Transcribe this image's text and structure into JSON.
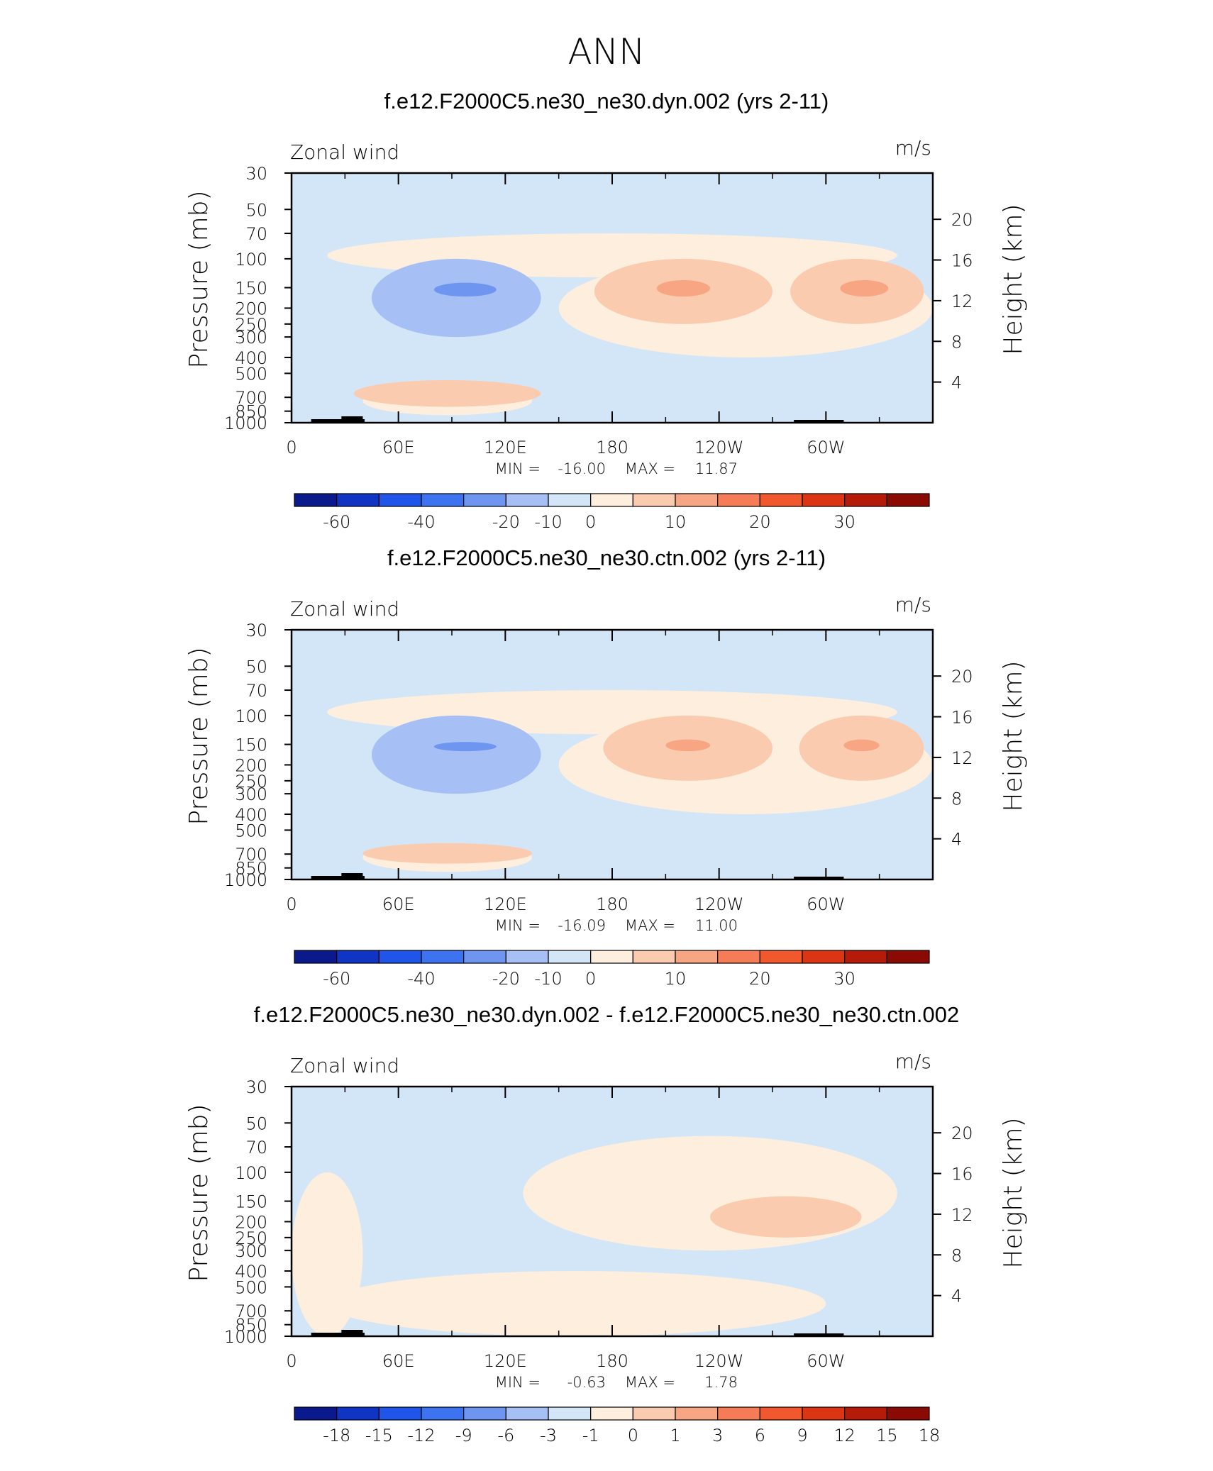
{
  "figure": {
    "title": "ANN"
  },
  "chart_data": [
    {
      "type": "heatmap",
      "title": "f.e12.F2000C5.ne30_ne30.dyn.002 (yrs 2-11)",
      "left_label": "Zonal wind",
      "right_label": "m/s",
      "ylabel": "Pressure (mb)",
      "ylabel_right": "Height (km)",
      "x_tick_labels": [
        "0",
        "60E",
        "120E",
        "180",
        "120W",
        "60W"
      ],
      "x_ticks_lon": [
        0,
        60,
        120,
        180,
        240,
        300
      ],
      "xlim": [
        0,
        360
      ],
      "y_tick_labels": [
        "30",
        "50",
        "70",
        "100",
        "150",
        "200",
        "250",
        "300",
        "400",
        "500",
        "700",
        "850",
        "1000"
      ],
      "y_scale": "log",
      "ylim": [
        1000,
        30
      ],
      "height_tick_labels": [
        "4",
        "8",
        "12",
        "16",
        "20"
      ],
      "stats": {
        "min_label": "MIN =",
        "min": "-16.00",
        "max_label": "MAX =",
        "max": "11.87"
      },
      "colorbar": {
        "colors": [
          "#0a1a8c",
          "#1034c4",
          "#1f55e8",
          "#3d73f0",
          "#6e95f0",
          "#a6bff5",
          "#d3e6f8",
          "#feeedd",
          "#fbcbb0",
          "#f7a582",
          "#f57c56",
          "#f2582e",
          "#dc3514",
          "#b51b08",
          "#8c0a04"
        ],
        "labels": [
          "-60",
          "-40",
          "-20",
          "-10",
          "0",
          "10",
          "20",
          "30"
        ],
        "label_after_box": [
          1,
          3,
          5,
          6,
          7,
          9,
          11,
          13
        ]
      },
      "field": {
        "background_level": "light-blue",
        "regions": [
          {
            "level": "light-orange",
            "desc": "broad upper positive band",
            "lon": [
              20,
              340
            ],
            "p": [
              70,
              130
            ]
          },
          {
            "level": "light-orange",
            "desc": "subtropical jet region",
            "lon": [
              150,
              360
            ],
            "p": [
              100,
              400
            ]
          },
          {
            "level": "orange-1",
            "desc": "jet west",
            "lon": [
              170,
              270
            ],
            "p": [
              100,
              250
            ]
          },
          {
            "level": "orange-2",
            "desc": "jet west core",
            "lon": [
              205,
              235
            ],
            "p": [
              135,
              170
            ]
          },
          {
            "level": "orange-1",
            "desc": "jet east",
            "lon": [
              280,
              355
            ],
            "p": [
              100,
              250
            ]
          },
          {
            "level": "orange-2",
            "desc": "jet east core",
            "lon": [
              308,
              335
            ],
            "p": [
              135,
              170
            ]
          },
          {
            "level": "blue-1",
            "desc": "easterly core",
            "lon": [
              45,
              140
            ],
            "p": [
              100,
              300
            ]
          },
          {
            "level": "blue-2",
            "desc": "easterly peak",
            "lon": [
              80,
              115
            ],
            "p": [
              140,
              170
            ]
          },
          {
            "level": "light-orange",
            "desc": "lower positive",
            "lon": [
              40,
              135
            ],
            "p": [
              600,
              900
            ]
          },
          {
            "level": "orange-1",
            "desc": "low level patch",
            "lon": [
              35,
              140
            ],
            "p": [
              550,
              800
            ]
          }
        ]
      }
    },
    {
      "type": "heatmap",
      "title": "f.e12.F2000C5.ne30_ne30.ctn.002 (yrs 2-11)",
      "left_label": "Zonal wind",
      "right_label": "m/s",
      "ylabel": "Pressure (mb)",
      "ylabel_right": "Height (km)",
      "x_tick_labels": [
        "0",
        "60E",
        "120E",
        "180",
        "120W",
        "60W"
      ],
      "x_ticks_lon": [
        0,
        60,
        120,
        180,
        240,
        300
      ],
      "xlim": [
        0,
        360
      ],
      "y_tick_labels": [
        "30",
        "50",
        "70",
        "100",
        "150",
        "200",
        "250",
        "300",
        "400",
        "500",
        "700",
        "850",
        "1000"
      ],
      "y_scale": "log",
      "ylim": [
        1000,
        30
      ],
      "height_tick_labels": [
        "4",
        "8",
        "12",
        "16",
        "20"
      ],
      "stats": {
        "min_label": "MIN =",
        "min": "-16.09",
        "max_label": "MAX =",
        "max": "11.00"
      },
      "colorbar": {
        "colors": [
          "#0a1a8c",
          "#1034c4",
          "#1f55e8",
          "#3d73f0",
          "#6e95f0",
          "#a6bff5",
          "#d3e6f8",
          "#feeedd",
          "#fbcbb0",
          "#f7a582",
          "#f57c56",
          "#f2582e",
          "#dc3514",
          "#b51b08",
          "#8c0a04"
        ],
        "labels": [
          "-60",
          "-40",
          "-20",
          "-10",
          "0",
          "10",
          "20",
          "30"
        ],
        "label_after_box": [
          1,
          3,
          5,
          6,
          7,
          9,
          11,
          13
        ]
      },
      "field": {
        "background_level": "light-blue",
        "regions": [
          {
            "level": "light-orange",
            "desc": "broad upper positive band",
            "lon": [
              20,
              340
            ],
            "p": [
              70,
              130
            ]
          },
          {
            "level": "light-orange",
            "desc": "subtropical jet region",
            "lon": [
              150,
              360
            ],
            "p": [
              100,
              400
            ]
          },
          {
            "level": "orange-1",
            "desc": "jet west",
            "lon": [
              175,
              270
            ],
            "p": [
              100,
              250
            ]
          },
          {
            "level": "orange-2",
            "desc": "jet west core",
            "lon": [
              210,
              235
            ],
            "p": [
              140,
              165
            ]
          },
          {
            "level": "orange-1",
            "desc": "jet east",
            "lon": [
              285,
              355
            ],
            "p": [
              100,
              250
            ]
          },
          {
            "level": "orange-2",
            "desc": "jet east core",
            "lon": [
              310,
              330
            ],
            "p": [
              140,
              165
            ]
          },
          {
            "level": "blue-1",
            "desc": "easterly core",
            "lon": [
              45,
              140
            ],
            "p": [
              100,
              300
            ]
          },
          {
            "level": "blue-2",
            "desc": "easterly peak",
            "lon": [
              80,
              115
            ],
            "p": [
              145,
              165
            ]
          },
          {
            "level": "light-orange",
            "desc": "lower positive",
            "lon": [
              40,
              135
            ],
            "p": [
              600,
              900
            ]
          },
          {
            "level": "orange-1",
            "desc": "low level patch",
            "lon": [
              40,
              135
            ],
            "p": [
              600,
              800
            ]
          }
        ]
      }
    },
    {
      "type": "heatmap",
      "title": "f.e12.F2000C5.ne30_ne30.dyn.002 - f.e12.F2000C5.ne30_ne30.ctn.002",
      "left_label": "Zonal wind",
      "right_label": "m/s",
      "ylabel": "Pressure (mb)",
      "ylabel_right": "Height (km)",
      "x_tick_labels": [
        "0",
        "60E",
        "120E",
        "180",
        "120W",
        "60W"
      ],
      "x_ticks_lon": [
        0,
        60,
        120,
        180,
        240,
        300
      ],
      "xlim": [
        0,
        360
      ],
      "y_tick_labels": [
        "30",
        "50",
        "70",
        "100",
        "150",
        "200",
        "250",
        "300",
        "400",
        "500",
        "700",
        "850",
        "1000"
      ],
      "y_scale": "log",
      "ylim": [
        1000,
        30
      ],
      "height_tick_labels": [
        "4",
        "8",
        "12",
        "16",
        "20"
      ],
      "stats": {
        "min_label": "MIN =",
        "min": "-0.63",
        "max_label": "MAX =",
        "max": "1.78"
      },
      "colorbar": {
        "colors": [
          "#0a1a8c",
          "#1034c4",
          "#1f55e8",
          "#3d73f0",
          "#6e95f0",
          "#a6bff5",
          "#d3e6f8",
          "#feeedd",
          "#fbcbb0",
          "#f7a582",
          "#f57c56",
          "#f2582e",
          "#dc3514",
          "#b51b08",
          "#8c0a04"
        ],
        "labels": [
          "-18",
          "-15",
          "-12",
          "-9",
          "-6",
          "-3",
          "-1",
          "0",
          "1",
          "3",
          "6",
          "9",
          "12",
          "15",
          "18"
        ],
        "label_after_box": [
          1,
          2,
          3,
          4,
          5,
          6,
          7,
          8,
          9,
          10,
          11,
          12,
          13,
          14,
          15
        ]
      },
      "field": {
        "background_level": "light-blue",
        "regions": [
          {
            "level": "light-orange",
            "desc": "upper positive",
            "lon": [
              130,
              340
            ],
            "p": [
              60,
              300
            ]
          },
          {
            "level": "light-orange",
            "desc": "western positive",
            "lon": [
              0,
              40
            ],
            "p": [
              100,
              1000
            ]
          },
          {
            "level": "light-orange",
            "desc": "lower positive",
            "lon": [
              20,
              300
            ],
            "p": [
              400,
              1000
            ]
          },
          {
            "level": "orange-1",
            "desc": "positive max",
            "lon": [
              235,
              320
            ],
            "p": [
              140,
              250
            ]
          }
        ]
      }
    }
  ]
}
